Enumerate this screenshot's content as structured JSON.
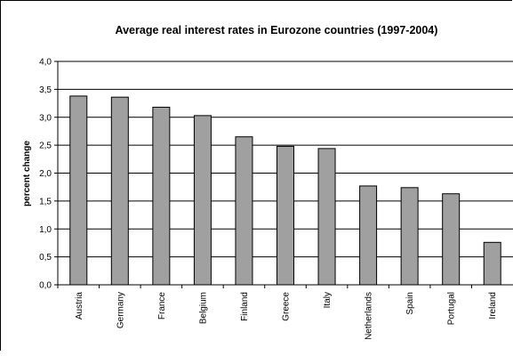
{
  "chart_data": {
    "type": "bar",
    "title": "Average real interest rates in Eurozone countries (1997-2004)",
    "xlabel": "",
    "ylabel": "percent change",
    "ylim": [
      0,
      4.0
    ],
    "yticks": [
      "0,0",
      "0,5",
      "1,0",
      "1,5",
      "2,0",
      "2,5",
      "3,0",
      "3,5",
      "4,0"
    ],
    "grid": true,
    "categories": [
      "Austria",
      "Germany",
      "France",
      "Belgium",
      "Finland",
      "Greece",
      "Italy",
      "Netherlands",
      "Spain",
      "Portugal",
      "Ireland"
    ],
    "values": [
      3.38,
      3.36,
      3.18,
      3.03,
      2.65,
      2.48,
      2.44,
      1.77,
      1.74,
      1.63,
      0.76
    ],
    "bar_color": "#a0a0a0",
    "bar_stroke": "#000000"
  }
}
